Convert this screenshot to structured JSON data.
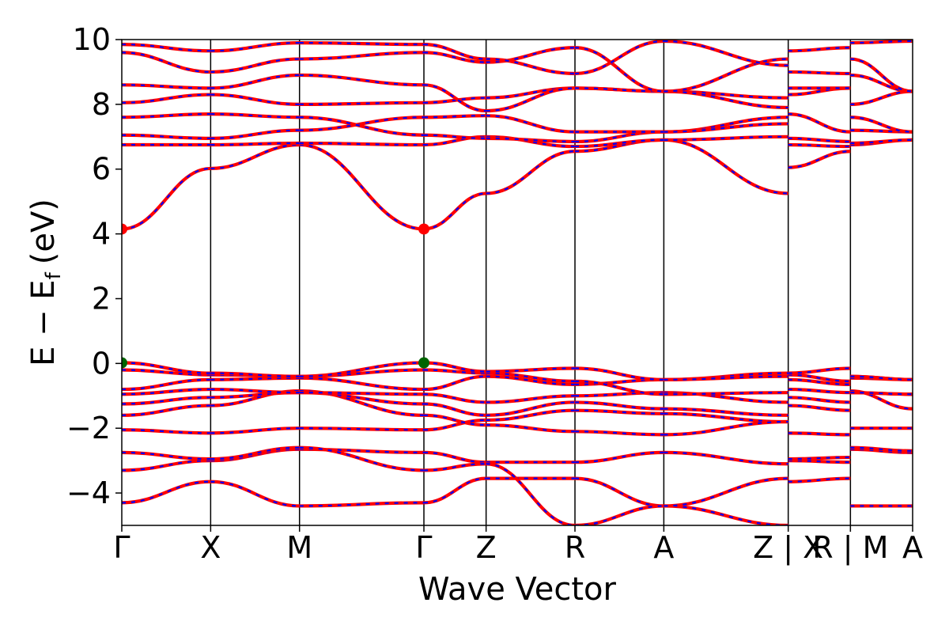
{
  "chart_data": {
    "type": "line",
    "title": "",
    "xlabel": "Wave Vector",
    "ylabel": "E − E",
    "ylabel_subscript": "f",
    "ylabel_unit": "(eV)",
    "ylim": [
      -5,
      10
    ],
    "y_ticks": [
      -4,
      -2,
      0,
      2,
      4,
      6,
      8,
      10
    ],
    "y_tick_labels": [
      "−4",
      "−2",
      "0",
      "2",
      "4",
      "6",
      "8",
      "10"
    ],
    "x_ticks": [
      0,
      1,
      2,
      3.4,
      4.1,
      5.1,
      6.1,
      7.5,
      8.2,
      8.9
    ],
    "x_tick_labels": [
      "Γ",
      "X",
      "M",
      "Γ",
      "Z",
      "R",
      "A",
      "Z | X",
      "R | M",
      "A"
    ],
    "grid": false,
    "colors": {
      "band_primary": "#ff0000",
      "band_secondary": "#0000ff",
      "vbm_marker": "#006400",
      "cbm_marker": "#ff0000",
      "kpath_line": "#000000"
    },
    "markers": [
      {
        "label": "VBM",
        "x": [
          0,
          3.4
        ],
        "y": [
          0.02,
          0.02
        ]
      },
      {
        "label": "CBM",
        "x": [
          0,
          3.4
        ],
        "y": [
          4.15,
          4.15
        ]
      }
    ],
    "segments": [
      {
        "x": [
          0,
          1
        ],
        "bands": [
          [
            4.15,
            6.02
          ],
          [
            -4.3,
            -3.65
          ],
          [
            -3.3,
            -3.0
          ],
          [
            -2.75,
            -2.95
          ],
          [
            -2.05,
            -2.15
          ],
          [
            -1.6,
            -1.3
          ],
          [
            -1.25,
            -1.05
          ],
          [
            -0.95,
            -0.8
          ],
          [
            -0.8,
            -0.5
          ],
          [
            -0.2,
            -0.35
          ],
          [
            0.02,
            -0.3
          ],
          [
            6.75,
            6.75
          ],
          [
            7.05,
            6.95
          ],
          [
            7.6,
            7.7
          ],
          [
            8.05,
            8.3
          ],
          [
            8.6,
            8.5
          ],
          [
            9.6,
            9.0
          ],
          [
            9.85,
            9.65
          ]
        ]
      },
      {
        "x": [
          1,
          2
        ],
        "bands": [
          [
            6.02,
            6.75
          ],
          [
            -3.65,
            -4.4
          ],
          [
            -3.0,
            -2.65
          ],
          [
            -2.95,
            -2.6
          ],
          [
            -2.15,
            -2.0
          ],
          [
            -1.3,
            -0.85
          ],
          [
            -1.05,
            -0.9
          ],
          [
            -0.8,
            -0.9
          ],
          [
            -0.5,
            -0.45
          ],
          [
            -0.35,
            -0.4
          ],
          [
            -0.3,
            -0.4
          ],
          [
            6.75,
            6.8
          ],
          [
            6.95,
            7.2
          ],
          [
            7.7,
            7.6
          ],
          [
            8.3,
            8.0
          ],
          [
            8.5,
            8.9
          ],
          [
            9.0,
            9.4
          ],
          [
            9.65,
            9.9
          ]
        ]
      },
      {
        "x": [
          2,
          3.4
        ],
        "bands": [
          [
            6.75,
            4.15
          ],
          [
            -4.4,
            -4.3
          ],
          [
            -2.65,
            -2.75
          ],
          [
            -2.6,
            -3.3
          ],
          [
            -2.0,
            -2.05
          ],
          [
            -0.85,
            -1.6
          ],
          [
            -0.9,
            -1.25
          ],
          [
            -0.9,
            -0.95
          ],
          [
            -0.45,
            -0.8
          ],
          [
            -0.4,
            -0.2
          ],
          [
            -0.4,
            0.02
          ],
          [
            6.8,
            6.75
          ],
          [
            7.2,
            7.6
          ],
          [
            7.6,
            7.05
          ],
          [
            8.0,
            8.05
          ],
          [
            8.9,
            8.6
          ],
          [
            9.4,
            9.6
          ],
          [
            9.9,
            9.85
          ]
        ]
      },
      {
        "x": [
          3.4,
          4.1
        ],
        "bands": [
          [
            4.15,
            5.25
          ],
          [
            -4.3,
            -3.55
          ],
          [
            -2.75,
            -3.05
          ],
          [
            -3.3,
            -3.1
          ],
          [
            -2.05,
            -1.75
          ],
          [
            -1.6,
            -1.9
          ],
          [
            -1.25,
            -1.6
          ],
          [
            -0.95,
            -1.2
          ],
          [
            -0.8,
            -0.4
          ],
          [
            -0.2,
            -0.3
          ],
          [
            0.02,
            -0.25
          ],
          [
            6.75,
            7.0
          ],
          [
            7.05,
            6.95
          ],
          [
            7.6,
            7.65
          ],
          [
            8.05,
            8.2
          ],
          [
            8.6,
            7.8
          ],
          [
            9.6,
            9.3
          ],
          [
            9.85,
            9.4
          ]
        ]
      },
      {
        "x": [
          4.1,
          5.1
        ],
        "bands": [
          [
            5.25,
            6.55
          ],
          [
            -3.55,
            -3.55
          ],
          [
            -3.05,
            -3.05
          ],
          [
            -3.1,
            -5.0
          ],
          [
            -1.75,
            -1.45
          ],
          [
            -1.9,
            -2.1
          ],
          [
            -1.6,
            -1.2
          ],
          [
            -1.2,
            -1.0
          ],
          [
            -0.4,
            -0.65
          ],
          [
            -0.3,
            -0.55
          ],
          [
            -0.25,
            -0.15
          ],
          [
            7.0,
            6.7
          ],
          [
            6.95,
            6.85
          ],
          [
            7.65,
            7.15
          ],
          [
            8.2,
            8.5
          ],
          [
            7.8,
            8.5
          ],
          [
            9.3,
            9.75
          ],
          [
            9.4,
            8.95
          ]
        ]
      },
      {
        "x": [
          5.1,
          6.1
        ],
        "bands": [
          [
            6.55,
            6.9
          ],
          [
            -3.55,
            -4.4
          ],
          [
            -3.05,
            -2.75
          ],
          [
            -5.0,
            -4.4
          ],
          [
            -1.45,
            -1.55
          ],
          [
            -2.1,
            -2.2
          ],
          [
            -1.2,
            -1.4
          ],
          [
            -1.0,
            -0.9
          ],
          [
            -0.65,
            -0.5
          ],
          [
            -0.55,
            -0.95
          ],
          [
            -0.15,
            -0.5
          ],
          [
            6.7,
            6.9
          ],
          [
            6.85,
            7.15
          ],
          [
            7.15,
            7.15
          ],
          [
            8.5,
            8.4
          ],
          [
            8.5,
            8.4
          ],
          [
            9.75,
            8.4
          ],
          [
            8.95,
            9.95
          ]
        ]
      },
      {
        "x": [
          6.1,
          7.5
        ],
        "bands": [
          [
            6.9,
            5.25
          ],
          [
            -4.4,
            -5.0
          ],
          [
            -2.75,
            -3.1
          ],
          [
            -4.4,
            -3.55
          ],
          [
            -1.55,
            -1.8
          ],
          [
            -2.2,
            -1.8
          ],
          [
            -1.4,
            -1.6
          ],
          [
            -0.9,
            -1.2
          ],
          [
            -0.5,
            -0.3
          ],
          [
            -0.95,
            -0.9
          ],
          [
            -0.5,
            -0.4
          ],
          [
            6.9,
            7.0
          ],
          [
            7.15,
            7.6
          ],
          [
            7.15,
            7.4
          ],
          [
            8.4,
            8.2
          ],
          [
            8.4,
            7.9
          ],
          [
            8.4,
            9.4
          ],
          [
            9.95,
            9.2
          ]
        ]
      },
      {
        "x": [
          7.5,
          8.2
        ],
        "bands": [
          [
            6.05,
            6.55
          ],
          [
            -3.65,
            -3.55
          ],
          [
            -3.0,
            -3.05
          ],
          [
            -2.95,
            -2.9
          ],
          [
            -2.15,
            -2.2
          ],
          [
            -1.3,
            -1.45
          ],
          [
            -1.05,
            -1.2
          ],
          [
            -0.8,
            -0.9
          ],
          [
            -0.5,
            -0.65
          ],
          [
            -0.35,
            -0.55
          ],
          [
            -0.3,
            -0.15
          ],
          [
            6.75,
            6.7
          ],
          [
            6.95,
            6.85
          ],
          [
            7.7,
            7.15
          ],
          [
            8.3,
            8.5
          ],
          [
            8.5,
            8.5
          ],
          [
            9.0,
            8.95
          ],
          [
            9.65,
            9.75
          ]
        ]
      },
      {
        "x": [
          8.2,
          8.9
        ],
        "bands": [
          [
            6.75,
            6.9
          ],
          [
            -4.4,
            -4.4
          ],
          [
            -2.65,
            -2.75
          ],
          [
            -2.6,
            -2.7
          ],
          [
            -2.0,
            -2.0
          ],
          [
            -0.85,
            -1.4
          ],
          [
            -0.9,
            -0.95
          ],
          [
            -0.9,
            -0.95
          ],
          [
            -0.45,
            -0.5
          ],
          [
            -0.4,
            -0.5
          ],
          [
            -0.4,
            -0.5
          ],
          [
            6.8,
            6.9
          ],
          [
            7.2,
            7.15
          ],
          [
            7.6,
            7.15
          ],
          [
            8.0,
            8.4
          ],
          [
            8.9,
            8.4
          ],
          [
            9.4,
            8.4
          ],
          [
            9.9,
            9.95
          ]
        ]
      }
    ]
  }
}
